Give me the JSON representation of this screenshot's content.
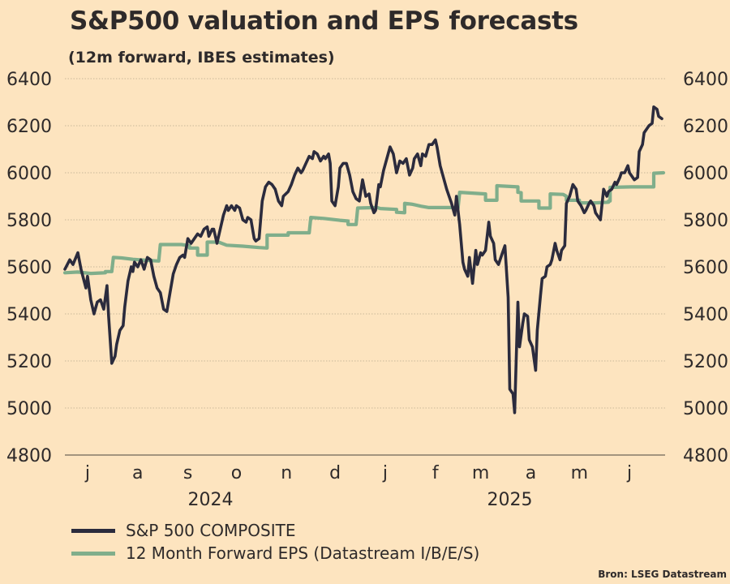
{
  "header": {
    "title": "S&P500 valuation and EPS forecasts",
    "subtitle": "(12m forward, IBES estimates)"
  },
  "source": "Bron: LSEG Datastream",
  "colors": {
    "background": "#fde4bf",
    "sp500": "#2b2b3d",
    "eps": "#80ae8b",
    "text": "#2e2a2a",
    "grid": "#c9b89a",
    "axis": "#6e6458"
  },
  "chart_data": {
    "type": "line",
    "title": "S&P500 valuation and EPS forecasts",
    "subtitle": "(12m forward, IBES estimates)",
    "xlabel": "",
    "ylabel": "",
    "x_unit": "days since 2024-07-01",
    "x_range": [
      0,
      371
    ],
    "ylim": [
      4800,
      6400
    ],
    "y_ticks": [
      4800,
      5000,
      5200,
      5400,
      5600,
      5800,
      6000,
      6200,
      6400
    ],
    "y_tick_labels": [
      "4800",
      "5000",
      "5200",
      "5400",
      "5600",
      "5800",
      "6000",
      "6200",
      "6400"
    ],
    "y_axis_both_sides": true,
    "grid": "horizontal dotted",
    "month_ticks": [
      {
        "label": "j",
        "day": 14
      },
      {
        "label": "a",
        "day": 45
      },
      {
        "label": "s",
        "day": 76
      },
      {
        "label": "o",
        "day": 106
      },
      {
        "label": "n",
        "day": 137
      },
      {
        "label": "d",
        "day": 167
      },
      {
        "label": "j",
        "day": 198
      },
      {
        "label": "f",
        "day": 229
      },
      {
        "label": "m",
        "day": 257
      },
      {
        "label": "a",
        "day": 288
      },
      {
        "label": "m",
        "day": 318
      },
      {
        "label": "j",
        "day": 349
      }
    ],
    "year_labels": [
      {
        "label": "2024",
        "day": 90
      },
      {
        "label": "2025",
        "day": 275
      }
    ],
    "legend_position": "bottom-left",
    "series": [
      {
        "name": "S&P 500 COMPOSITE",
        "color": "#2b2b3d",
        "style": "line",
        "points": [
          [
            0,
            5590
          ],
          [
            3,
            5630
          ],
          [
            5,
            5610
          ],
          [
            8,
            5660
          ],
          [
            10,
            5590
          ],
          [
            13,
            5510
          ],
          [
            14,
            5560
          ],
          [
            16,
            5460
          ],
          [
            18,
            5400
          ],
          [
            20,
            5450
          ],
          [
            22,
            5460
          ],
          [
            24,
            5420
          ],
          [
            26,
            5520
          ],
          [
            27,
            5390
          ],
          [
            29,
            5190
          ],
          [
            31,
            5220
          ],
          [
            32,
            5270
          ],
          [
            34,
            5330
          ],
          [
            36,
            5350
          ],
          [
            37,
            5430
          ],
          [
            39,
            5540
          ],
          [
            41,
            5600
          ],
          [
            42,
            5580
          ],
          [
            43,
            5620
          ],
          [
            45,
            5600
          ],
          [
            47,
            5630
          ],
          [
            49,
            5590
          ],
          [
            51,
            5640
          ],
          [
            53,
            5630
          ],
          [
            55,
            5560
          ],
          [
            57,
            5510
          ],
          [
            59,
            5490
          ],
          [
            61,
            5420
          ],
          [
            63,
            5410
          ],
          [
            65,
            5490
          ],
          [
            67,
            5570
          ],
          [
            69,
            5610
          ],
          [
            71,
            5640
          ],
          [
            73,
            5650
          ],
          [
            74,
            5640
          ],
          [
            76,
            5720
          ],
          [
            78,
            5700
          ],
          [
            80,
            5720
          ],
          [
            82,
            5740
          ],
          [
            84,
            5730
          ],
          [
            86,
            5760
          ],
          [
            88,
            5770
          ],
          [
            89,
            5730
          ],
          [
            91,
            5760
          ],
          [
            92,
            5760
          ],
          [
            94,
            5700
          ],
          [
            96,
            5760
          ],
          [
            98,
            5820
          ],
          [
            100,
            5860
          ],
          [
            101,
            5840
          ],
          [
            103,
            5860
          ],
          [
            105,
            5840
          ],
          [
            106,
            5860
          ],
          [
            108,
            5850
          ],
          [
            110,
            5800
          ],
          [
            112,
            5790
          ],
          [
            113,
            5810
          ],
          [
            115,
            5800
          ],
          [
            117,
            5720
          ],
          [
            118,
            5710
          ],
          [
            120,
            5720
          ],
          [
            122,
            5880
          ],
          [
            124,
            5940
          ],
          [
            126,
            5960
          ],
          [
            128,
            5950
          ],
          [
            130,
            5930
          ],
          [
            132,
            5880
          ],
          [
            134,
            5860
          ],
          [
            135,
            5900
          ],
          [
            138,
            5920
          ],
          [
            140,
            5950
          ],
          [
            142,
            5990
          ],
          [
            144,
            6020
          ],
          [
            146,
            6000
          ],
          [
            147,
            6010
          ],
          [
            149,
            6040
          ],
          [
            151,
            6070
          ],
          [
            153,
            6060
          ],
          [
            154,
            6090
          ],
          [
            156,
            6080
          ],
          [
            158,
            6050
          ],
          [
            160,
            6070
          ],
          [
            161,
            6060
          ],
          [
            163,
            6080
          ],
          [
            164,
            6040
          ],
          [
            165,
            5880
          ],
          [
            167,
            5860
          ],
          [
            169,
            5940
          ],
          [
            170,
            6020
          ],
          [
            172,
            6040
          ],
          [
            174,
            6040
          ],
          [
            176,
            5990
          ],
          [
            178,
            5920
          ],
          [
            180,
            5890
          ],
          [
            182,
            5880
          ],
          [
            184,
            5970
          ],
          [
            186,
            5900
          ],
          [
            188,
            5910
          ],
          [
            189,
            5870
          ],
          [
            191,
            5830
          ],
          [
            192,
            5840
          ],
          [
            194,
            5950
          ],
          [
            195,
            5940
          ],
          [
            197,
            6010
          ],
          [
            199,
            6060
          ],
          [
            201,
            6110
          ],
          [
            203,
            6080
          ],
          [
            205,
            6000
          ],
          [
            207,
            6050
          ],
          [
            209,
            6040
          ],
          [
            211,
            6060
          ],
          [
            213,
            5990
          ],
          [
            215,
            6020
          ],
          [
            216,
            6060
          ],
          [
            218,
            6080
          ],
          [
            220,
            6030
          ],
          [
            221,
            6080
          ],
          [
            223,
            6070
          ],
          [
            225,
            6120
          ],
          [
            227,
            6120
          ],
          [
            229,
            6140
          ],
          [
            230,
            6110
          ],
          [
            232,
            6030
          ],
          [
            234,
            5980
          ],
          [
            236,
            5930
          ],
          [
            238,
            5890
          ],
          [
            239,
            5870
          ],
          [
            241,
            5820
          ],
          [
            242,
            5900
          ],
          [
            244,
            5780
          ],
          [
            246,
            5620
          ],
          [
            247,
            5590
          ],
          [
            249,
            5560
          ],
          [
            250,
            5640
          ],
          [
            252,
            5530
          ],
          [
            254,
            5670
          ],
          [
            255,
            5610
          ],
          [
            257,
            5660
          ],
          [
            258,
            5650
          ],
          [
            260,
            5670
          ],
          [
            262,
            5790
          ],
          [
            263,
            5730
          ],
          [
            265,
            5700
          ],
          [
            266,
            5630
          ],
          [
            268,
            5610
          ],
          [
            270,
            5650
          ],
          [
            272,
            5690
          ],
          [
            274,
            5470
          ],
          [
            275,
            5080
          ],
          [
            277,
            5060
          ],
          [
            278,
            4980
          ],
          [
            280,
            5450
          ],
          [
            281,
            5260
          ],
          [
            283,
            5360
          ],
          [
            284,
            5400
          ],
          [
            286,
            5390
          ],
          [
            287,
            5290
          ],
          [
            289,
            5260
          ],
          [
            291,
            5160
          ],
          [
            292,
            5330
          ],
          [
            294,
            5480
          ],
          [
            295,
            5550
          ],
          [
            297,
            5560
          ],
          [
            298,
            5600
          ],
          [
            300,
            5610
          ],
          [
            301,
            5630
          ],
          [
            303,
            5700
          ],
          [
            304,
            5670
          ],
          [
            306,
            5630
          ],
          [
            307,
            5670
          ],
          [
            309,
            5690
          ],
          [
            310,
            5870
          ],
          [
            312,
            5900
          ],
          [
            314,
            5950
          ],
          [
            316,
            5930
          ],
          [
            317,
            5880
          ],
          [
            319,
            5860
          ],
          [
            321,
            5830
          ],
          [
            322,
            5840
          ],
          [
            324,
            5870
          ],
          [
            325,
            5880
          ],
          [
            327,
            5860
          ],
          [
            328,
            5830
          ],
          [
            330,
            5810
          ],
          [
            331,
            5800
          ],
          [
            333,
            5930
          ],
          [
            335,
            5900
          ],
          [
            336,
            5920
          ],
          [
            338,
            5930
          ],
          [
            340,
            5960
          ],
          [
            341,
            5950
          ],
          [
            343,
            5980
          ],
          [
            344,
            6000
          ],
          [
            346,
            6000
          ],
          [
            348,
            6030
          ],
          [
            349,
            6000
          ],
          [
            351,
            5980
          ],
          [
            352,
            5970
          ],
          [
            354,
            5980
          ],
          [
            355,
            6090
          ],
          [
            357,
            6120
          ],
          [
            358,
            6170
          ],
          [
            360,
            6190
          ],
          [
            361,
            6200
          ],
          [
            363,
            6210
          ],
          [
            364,
            6280
          ],
          [
            366,
            6270
          ],
          [
            367,
            6240
          ],
          [
            369,
            6230
          ]
        ]
      },
      {
        "name": "12 Month Forward EPS (Datastream I/B/E/S)",
        "color": "#80ae8b",
        "style": "step",
        "points": [
          [
            0,
            5575
          ],
          [
            8,
            5578
          ],
          [
            16,
            5572
          ],
          [
            25,
            5575
          ],
          [
            25,
            5580
          ],
          [
            29,
            5580
          ],
          [
            30,
            5640
          ],
          [
            35,
            5638
          ],
          [
            42,
            5632
          ],
          [
            50,
            5628
          ],
          [
            58,
            5625
          ],
          [
            59,
            5695
          ],
          [
            72,
            5695
          ],
          [
            77,
            5690
          ],
          [
            77,
            5680
          ],
          [
            82,
            5680
          ],
          [
            82,
            5650
          ],
          [
            88,
            5650
          ],
          [
            88,
            5705
          ],
          [
            95,
            5705
          ],
          [
            100,
            5692
          ],
          [
            110,
            5688
          ],
          [
            120,
            5682
          ],
          [
            125,
            5680
          ],
          [
            125,
            5735
          ],
          [
            138,
            5735
          ],
          [
            138,
            5745
          ],
          [
            151,
            5745
          ],
          [
            152,
            5810
          ],
          [
            160,
            5806
          ],
          [
            170,
            5798
          ],
          [
            175,
            5795
          ],
          [
            175,
            5780
          ],
          [
            180,
            5780
          ],
          [
            181,
            5850
          ],
          [
            193,
            5852
          ],
          [
            195,
            5848
          ],
          [
            205,
            5844
          ],
          [
            205,
            5832
          ],
          [
            210,
            5830
          ],
          [
            210,
            5870
          ],
          [
            215,
            5866
          ],
          [
            220,
            5858
          ],
          [
            225,
            5852
          ],
          [
            240,
            5852
          ],
          [
            243,
            5850
          ],
          [
            244,
            5917
          ],
          [
            255,
            5912
          ],
          [
            260,
            5910
          ],
          [
            260,
            5883
          ],
          [
            267,
            5883
          ],
          [
            267,
            5945
          ],
          [
            280,
            5940
          ],
          [
            280,
            5917
          ],
          [
            282,
            5915
          ],
          [
            282,
            5880
          ],
          [
            293,
            5880
          ],
          [
            293,
            5850
          ],
          [
            300,
            5850
          ],
          [
            300,
            5910
          ],
          [
            308,
            5908
          ],
          [
            310,
            5900
          ],
          [
            310,
            5883
          ],
          [
            318,
            5883
          ],
          [
            318,
            5872
          ],
          [
            328,
            5872
          ],
          [
            336,
            5875
          ],
          [
            336,
            5880
          ],
          [
            337,
            5880
          ],
          [
            337,
            5938
          ],
          [
            350,
            5940
          ],
          [
            364,
            5940
          ],
          [
            364,
            5998
          ],
          [
            370,
            6000
          ]
        ]
      }
    ]
  },
  "legend": [
    {
      "label": "S&P 500 COMPOSITE",
      "color": "#2b2b3d"
    },
    {
      "label": "12 Month Forward EPS (Datastream I/B/E/S)",
      "color": "#80ae8b"
    }
  ]
}
